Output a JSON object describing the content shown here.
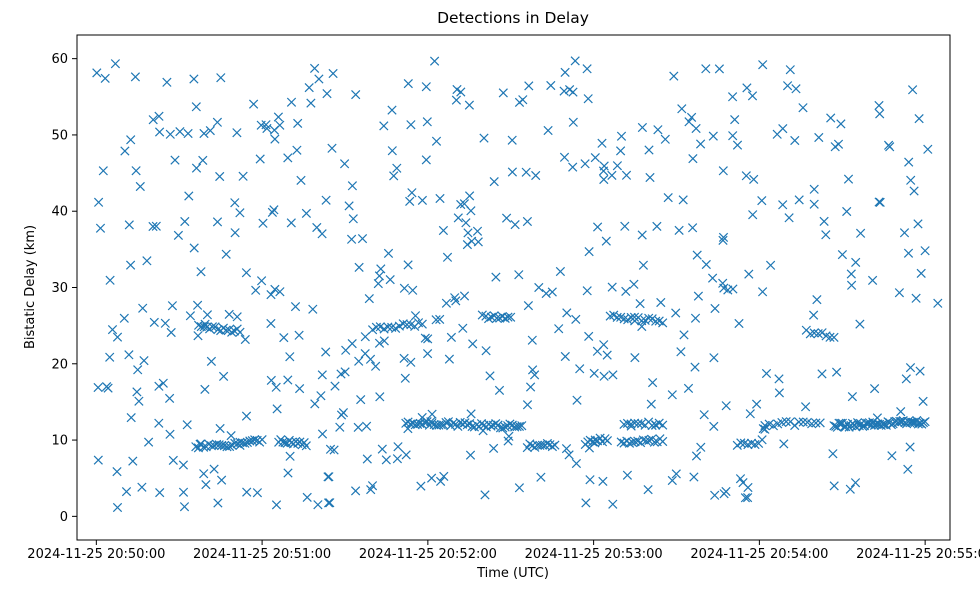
{
  "chart_data": {
    "type": "scatter",
    "title": "Detections in Delay",
    "xlabel": "Time (UTC)",
    "ylabel": "Bistatic Delay (km)",
    "x_axis_kind": "datetime",
    "x_start": "2024-11-25 20:49:53",
    "x_end": "2024-11-25 20:55:09",
    "xticks": [
      "2024-11-25 20:50:00",
      "2024-11-25 20:51:00",
      "2024-11-25 20:52:00",
      "2024-11-25 20:53:00",
      "2024-11-25 20:54:00",
      "2024-11-25 20:55:00"
    ],
    "ylim": [
      -3.1,
      63.1
    ],
    "yticks": [
      0,
      10,
      20,
      30,
      40,
      50,
      60
    ],
    "marker": "x",
    "color": "#1f77b4",
    "grid": false,
    "legend": "none",
    "bands": [
      {
        "start": "2024-11-25 20:50:37",
        "end": "2024-11-25 20:50:52",
        "delay_start": 24.9,
        "delay_end": 24.3,
        "count": 16
      },
      {
        "start": "2024-11-25 20:51:40",
        "end": "2024-11-25 20:51:58",
        "delay_start": 24.6,
        "delay_end": 25.2,
        "count": 14
      },
      {
        "start": "2024-11-25 20:52:21",
        "end": "2024-11-25 20:52:30",
        "delay_start": 26.2,
        "delay_end": 25.9,
        "count": 10
      },
      {
        "start": "2024-11-25 20:53:06",
        "end": "2024-11-25 20:53:25",
        "delay_start": 26.2,
        "delay_end": 25.6,
        "count": 16
      },
      {
        "start": "2024-11-25 20:54:17",
        "end": "2024-11-25 20:54:27",
        "delay_start": 24.1,
        "delay_end": 23.6,
        "count": 8
      },
      {
        "start": "2024-11-25 20:50:36",
        "end": "2024-11-25 20:50:52",
        "delay_start": 9.2,
        "delay_end": 9.5,
        "count": 18
      },
      {
        "start": "2024-11-25 20:50:52",
        "end": "2024-11-25 20:51:00",
        "delay_start": 9.6,
        "delay_end": 10.0,
        "count": 10
      },
      {
        "start": "2024-11-25 20:51:06",
        "end": "2024-11-25 20:51:16",
        "delay_start": 10.0,
        "delay_end": 9.5,
        "count": 14
      },
      {
        "start": "2024-11-25 20:51:52",
        "end": "2024-11-25 20:52:34",
        "delay_start": 12.3,
        "delay_end": 11.8,
        "count": 50
      },
      {
        "start": "2024-11-25 20:52:36",
        "end": "2024-11-25 20:52:46",
        "delay_start": 9.2,
        "delay_end": 9.4,
        "count": 12
      },
      {
        "start": "2024-11-25 20:52:57",
        "end": "2024-11-25 20:53:05",
        "delay_start": 9.6,
        "delay_end": 10.2,
        "count": 10
      },
      {
        "start": "2024-11-25 20:53:10",
        "end": "2024-11-25 20:53:25",
        "delay_start": 9.6,
        "delay_end": 10.0,
        "count": 16
      },
      {
        "start": "2024-11-25 20:53:11",
        "end": "2024-11-25 20:53:25",
        "delay_start": 12.2,
        "delay_end": 12.2,
        "count": 12
      },
      {
        "start": "2024-11-25 20:53:52",
        "end": "2024-11-25 20:54:01",
        "delay_start": 9.3,
        "delay_end": 9.8,
        "count": 8
      },
      {
        "start": "2024-11-25 20:54:02",
        "end": "2024-11-25 20:54:22",
        "delay_start": 12.1,
        "delay_end": 12.2,
        "count": 14
      },
      {
        "start": "2024-11-25 20:54:27",
        "end": "2024-11-25 20:55:00",
        "delay_start": 11.9,
        "delay_end": 12.4,
        "count": 55
      }
    ],
    "scattered_count": 520,
    "scattered_start": "2024-11-25 20:50:00",
    "scattered_end": "2024-11-25 20:55:05",
    "scattered_delay_range": [
      1,
      60
    ]
  }
}
